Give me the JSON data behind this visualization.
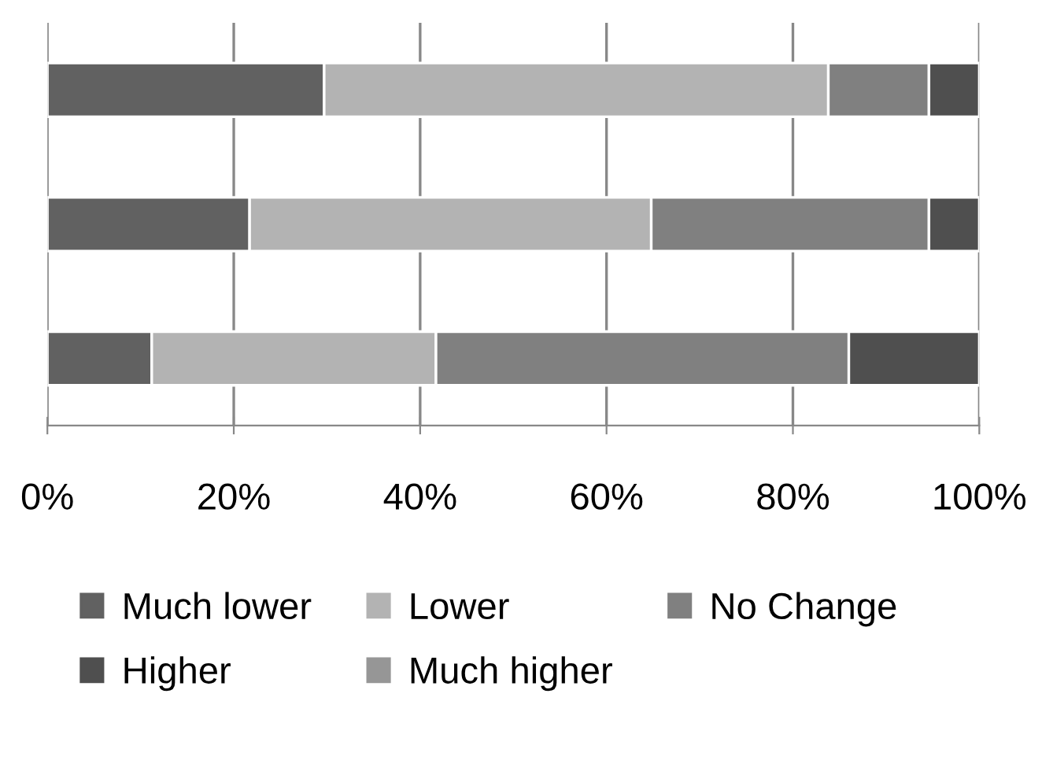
{
  "chart_data": {
    "type": "bar",
    "orientation": "horizontal",
    "stacked": true,
    "categories": [
      null,
      null,
      null
    ],
    "series": [
      {
        "name": "Much lower",
        "color": "#616161",
        "values": [
          29.7,
          21.7,
          11.2
        ]
      },
      {
        "name": "Lower",
        "color": "#b3b3b3",
        "values": [
          54.1,
          43.1,
          30.5
        ]
      },
      {
        "name": "No Change",
        "color": "#808080",
        "values": [
          10.8,
          29.8,
          44.3
        ]
      },
      {
        "name": "Higher",
        "color": "#4f4f4f",
        "values": [
          5.4,
          5.4,
          14.0
        ]
      },
      {
        "name": "Much higher",
        "color": "#969696",
        "values": [
          null,
          null,
          null
        ]
      }
    ],
    "xlim": [
      0,
      100
    ],
    "xticks": [
      {
        "value": 0,
        "label": "0%"
      },
      {
        "value": 20,
        "label": "20%"
      },
      {
        "value": 40,
        "label": "40%"
      },
      {
        "value": 60,
        "label": "60%"
      },
      {
        "value": 80,
        "label": "80%"
      },
      {
        "value": 100,
        "label": "100%"
      }
    ],
    "grid": "x",
    "legend": "bottom"
  }
}
